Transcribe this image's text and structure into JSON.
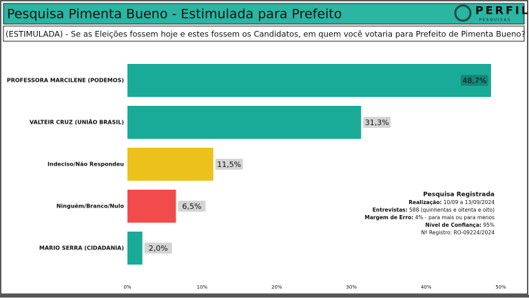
{
  "header": {
    "title": "Pesquisa Pimenta Bueno - Estimulada para Prefeito",
    "logo": "PERFIL",
    "logo_sub": "PESQUISAS"
  },
  "question": "(ESTIMULADA) - Se as Eleições fossem hoje e estes fossem os Candidatos, em quem você votaria para Prefeito de Pimenta Bueno?",
  "chart_data": {
    "type": "bar",
    "orientation": "horizontal",
    "categories": [
      "PROFESSORA MARCILENE (PODEMOS)",
      "VALTEIR CRUZ (UNIÃO BRASIL)",
      "Indeciso/Não Respondeu",
      "Ninguém/Branco/Nulo",
      "MARIO SERRA (CIDADANIA)"
    ],
    "values": [
      48.7,
      31.3,
      11.5,
      6.5,
      2.0
    ],
    "value_labels": [
      "48,7%",
      "31,3%",
      "11,5%",
      "6,5%",
      "2,0%"
    ],
    "colors": [
      "#1aab98",
      "#1aab98",
      "#ecc11b",
      "#f24b4b",
      "#1aab98"
    ],
    "xlim": [
      0,
      50
    ],
    "xticks": [
      {
        "value": 0,
        "label": "0%"
      },
      {
        "value": 10,
        "label": "10%"
      },
      {
        "value": 20,
        "label": "20%"
      },
      {
        "value": 30,
        "label": "30%"
      },
      {
        "value": 40,
        "label": "40%"
      },
      {
        "value": 50,
        "label": "50%"
      }
    ]
  },
  "info": {
    "title": "Pesquisa Registrada",
    "lines": [
      {
        "label": "Realização:",
        "text": " 10/09 a 13/09/2024"
      },
      {
        "label": "Entrevistas:",
        "text": " 588 (quinhentas e oitenta e oito)"
      },
      {
        "label": "Margem de Erro:",
        "text": " 4% - para mais ou para menos"
      },
      {
        "label": "Nível de Confiança:",
        "text": " 95%"
      },
      {
        "label": null,
        "text": "Nº Registro: RO-09224/2024"
      }
    ]
  }
}
